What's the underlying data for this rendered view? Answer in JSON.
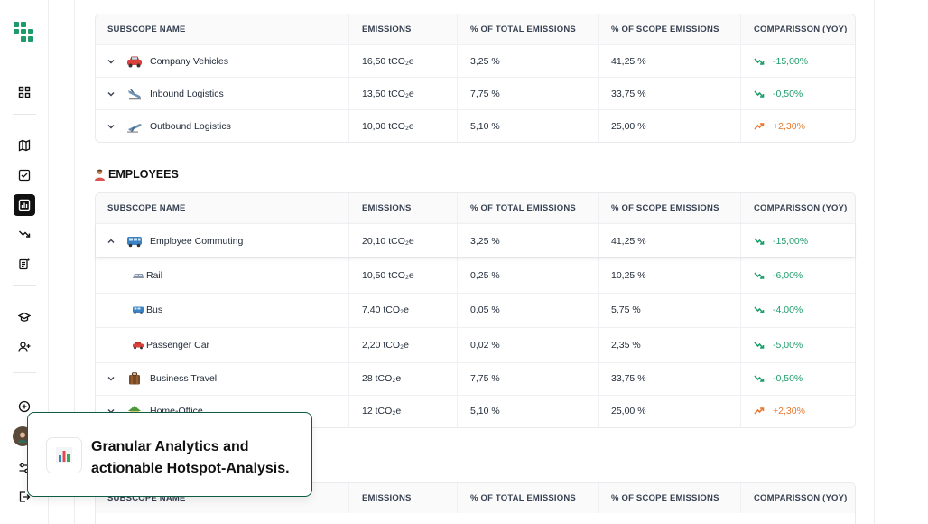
{
  "columns": {
    "name": "SUBSCOPE NAME",
    "emissions": "EMISSIONS",
    "pct_total": "% OF TOTAL EMISSIONS",
    "pct_scope": "% OF SCOPE EMISSIONS",
    "comparison": "COMPARISSON (YOY)"
  },
  "table_top": {
    "rows": [
      {
        "name": "Company Vehicles",
        "emissions": "16,50 tCO₂e",
        "pct_total": "3,25 %",
        "pct_scope": "41,25 %",
        "yoy": "-15,00%",
        "trend": "down",
        "icon": "car-icon"
      },
      {
        "name": "Inbound Logistics",
        "emissions": "13,50 tCO₂e",
        "pct_total": "7,75 %",
        "pct_scope": "33,75 %",
        "yoy": "-0,50%",
        "trend": "down",
        "icon": "airplane-arriving-icon"
      },
      {
        "name": "Outbound Logistics",
        "emissions": "10,00 tCO₂e",
        "pct_total": "5,10 %",
        "pct_scope": "25,00 %",
        "yoy": "+2,30%",
        "trend": "up",
        "icon": "airplane-departing-icon"
      }
    ]
  },
  "employees": {
    "title": "EMPLOYEES",
    "rows": [
      {
        "name": "Employee Commuting",
        "emissions": "20,10 tCO₂e",
        "pct_total": "3,25 %",
        "pct_scope": "41,25 %",
        "yoy": "-15,00%",
        "trend": "down",
        "icon": "bus-icon"
      },
      {
        "name": "Business Travel",
        "emissions": "28 tCO₂e",
        "pct_total": "7,75 %",
        "pct_scope": "33,75 %",
        "yoy": "-0,50%",
        "trend": "down",
        "icon": "luggage-icon"
      },
      {
        "name": "Home-Office",
        "emissions": "12 tCO₂e",
        "pct_total": "5,10 %",
        "pct_scope": "25,00 %",
        "yoy": "+2,30%",
        "trend": "up",
        "icon": "house-icon"
      }
    ],
    "subrows": [
      {
        "name": "Rail",
        "emissions": "10,50 tCO₂e",
        "pct_total": "0,25 %",
        "pct_scope": "10,25 %",
        "yoy": "-6,00%",
        "trend": "down",
        "icon": "train-icon"
      },
      {
        "name": "Bus",
        "emissions": "7,40 tCO₂e",
        "pct_total": "0,05 %",
        "pct_scope": "5,75 %",
        "yoy": "-4,00%",
        "trend": "down",
        "icon": "bus-icon"
      },
      {
        "name": "Passenger Car",
        "emissions": "2,20 tCO₂e",
        "pct_total": "0,02 %",
        "pct_scope": "2,35 %",
        "yoy": "-5,00%",
        "trend": "down",
        "icon": "car-icon"
      }
    ]
  },
  "promo": {
    "text": "Granular Analytics and actionable Hotspot-Analysis.",
    "icon": "bar-chart-icon"
  },
  "colors": {
    "trend_down": "#1f9d6b",
    "trend_up": "#e8772e",
    "brand_green": "#0f5c44",
    "logo_green": "#1e9b6a"
  },
  "sidebar": {
    "icons": [
      "logo-icon",
      "dashboard-icon",
      "map-icon",
      "checklist-icon",
      "analytics-icon",
      "trend-down-icon",
      "document-icon",
      "graduation-cap-icon",
      "add-user-icon",
      "add-circle-icon",
      "avatar",
      "settings-sliders-icon",
      "logout-icon"
    ]
  }
}
